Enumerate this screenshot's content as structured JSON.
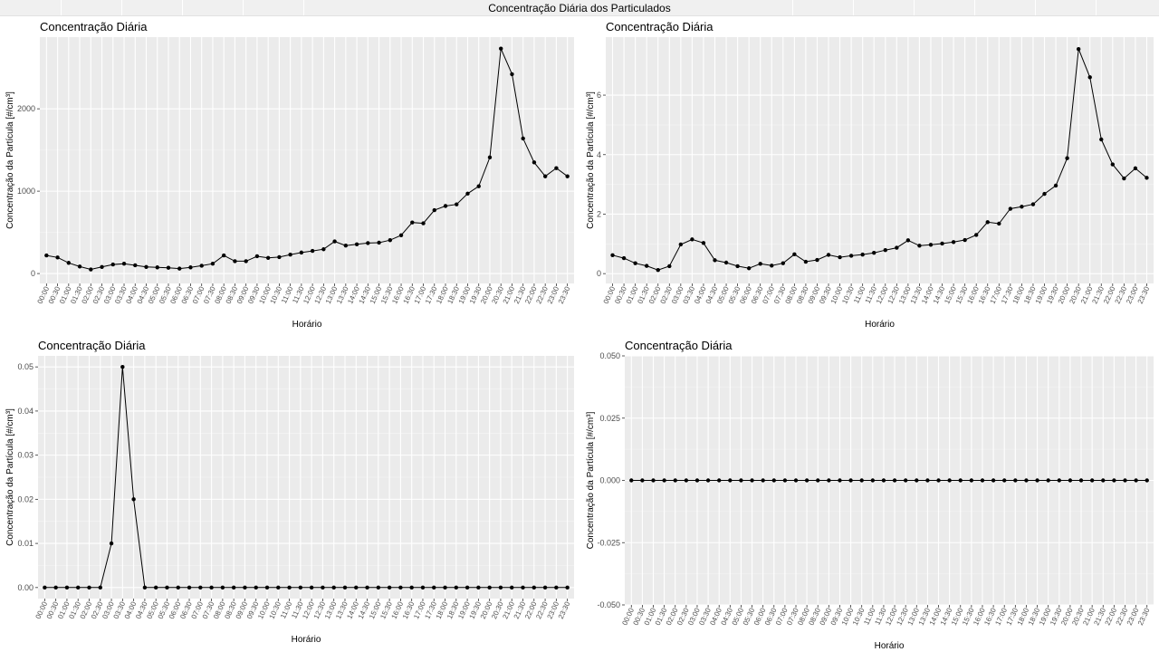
{
  "window": {
    "title": "Concentração Diária dos Particulados"
  },
  "chart_data": [
    {
      "type": "line",
      "title": "Concentração Diária",
      "xlabel": "Horário",
      "ylabel": "Concentração da Partícula [#/cm³]",
      "x_tick_labels": [
        "00:00",
        "00:30",
        "01:00",
        "01:30",
        "02:00",
        "02:30",
        "03:00",
        "03:30",
        "04:00",
        "04:30",
        "05:00",
        "05:30",
        "06:00",
        "06:30",
        "07:00",
        "07:30",
        "08:00",
        "08:30",
        "09:00",
        "09:30",
        "10:00",
        "10:30",
        "11:00",
        "11:30",
        "12:00",
        "12:30",
        "13:00",
        "13:30",
        "14:00",
        "14:30",
        "15:00",
        "15:30",
        "16:00",
        "16:30",
        "17:00",
        "17:30",
        "18:00",
        "18:30",
        "19:00",
        "19:30",
        "20:00",
        "20:30",
        "21:00",
        "21:30",
        "22:00",
        "22:30",
        "23:00",
        "23:30"
      ],
      "y_ticks": [
        0,
        1000,
        2000
      ],
      "y_tick_labels": [
        "0",
        "1000",
        "2000"
      ],
      "ylim": [
        -120,
        2870
      ],
      "grid": true,
      "series": [
        {
          "values": [
            220,
            195,
            130,
            85,
            50,
            80,
            110,
            120,
            100,
            80,
            75,
            70,
            60,
            75,
            95,
            120,
            220,
            150,
            150,
            210,
            190,
            200,
            230,
            255,
            275,
            295,
            390,
            340,
            355,
            370,
            375,
            405,
            465,
            620,
            610,
            770,
            820,
            840,
            970,
            1060,
            1410,
            2730,
            2420,
            1640,
            1350,
            1180,
            1280,
            1180
          ]
        }
      ]
    },
    {
      "type": "line",
      "title": "Concentração Diária",
      "xlabel": "Horário",
      "ylabel": "Concentração da Partícula [#/cm³]",
      "x_tick_labels": [
        "00:00",
        "00:30",
        "01:00",
        "01:30",
        "02:00",
        "02:30",
        "03:00",
        "03:30",
        "04:00",
        "04:30",
        "05:00",
        "05:30",
        "06:00",
        "06:30",
        "07:00",
        "07:30",
        "08:00",
        "08:30",
        "09:00",
        "09:30",
        "10:00",
        "10:30",
        "11:00",
        "11:30",
        "12:00",
        "12:30",
        "13:00",
        "13:30",
        "14:00",
        "14:30",
        "15:00",
        "15:30",
        "16:00",
        "16:30",
        "17:00",
        "17:30",
        "18:00",
        "18:30",
        "19:00",
        "19:30",
        "20:00",
        "20:30",
        "21:00",
        "21:30",
        "22:00",
        "22:30",
        "23:00",
        "23:30"
      ],
      "y_ticks": [
        0,
        2,
        4,
        6
      ],
      "y_tick_labels": [
        "0",
        "2",
        "4",
        "6"
      ],
      "ylim": [
        -0.33,
        7.95
      ],
      "grid": true,
      "series": [
        {
          "values": [
            0.62,
            0.52,
            0.35,
            0.26,
            0.12,
            0.25,
            0.98,
            1.15,
            1.03,
            0.45,
            0.37,
            0.25,
            0.18,
            0.33,
            0.27,
            0.35,
            0.65,
            0.4,
            0.46,
            0.63,
            0.55,
            0.6,
            0.64,
            0.7,
            0.79,
            0.87,
            1.12,
            0.94,
            0.97,
            1.01,
            1.06,
            1.13,
            1.3,
            1.73,
            1.68,
            2.18,
            2.25,
            2.33,
            2.68,
            2.96,
            3.88,
            7.55,
            6.6,
            4.51,
            3.67,
            3.2,
            3.54,
            3.22
          ]
        }
      ]
    },
    {
      "type": "line",
      "title": "Concentração Diária",
      "xlabel": "Horário",
      "ylabel": "Concentração da Partícula [#/cm³]",
      "x_tick_labels": [
        "00:00",
        "00:30",
        "01:00",
        "01:30",
        "02:00",
        "02:30",
        "03:00",
        "03:30",
        "04:00",
        "04:30",
        "05:00",
        "05:30",
        "06:00",
        "06:30",
        "07:00",
        "07:30",
        "08:00",
        "08:30",
        "09:00",
        "09:30",
        "10:00",
        "10:30",
        "11:00",
        "11:30",
        "12:00",
        "12:30",
        "13:00",
        "13:30",
        "14:00",
        "14:30",
        "15:00",
        "15:30",
        "16:00",
        "16:30",
        "17:00",
        "17:30",
        "18:00",
        "18:30",
        "19:00",
        "19:30",
        "20:00",
        "20:30",
        "21:00",
        "21:30",
        "22:00",
        "22:30",
        "23:00",
        "23:30"
      ],
      "y_ticks": [
        0,
        0.01,
        0.02,
        0.03,
        0.04,
        0.05
      ],
      "y_tick_labels": [
        "0.00",
        "0.01",
        "0.02",
        "0.03",
        "0.04",
        "0.05"
      ],
      "ylim": [
        -0.0025,
        0.0525
      ],
      "grid": true,
      "series": [
        {
          "values": [
            0,
            0,
            0,
            0,
            0,
            0,
            0.01,
            0.05,
            0.02,
            0,
            0,
            0,
            0,
            0,
            0,
            0,
            0,
            0,
            0,
            0,
            0,
            0,
            0,
            0,
            0,
            0,
            0,
            0,
            0,
            0,
            0,
            0,
            0,
            0,
            0,
            0,
            0,
            0,
            0,
            0,
            0,
            0,
            0,
            0,
            0,
            0,
            0,
            0
          ]
        }
      ]
    },
    {
      "type": "line",
      "title": "Concentração Diária",
      "xlabel": "Horário",
      "ylabel": "Concentração da Partícula [#/cm³]",
      "x_tick_labels": [
        "00:00",
        "00:30",
        "01:00",
        "01:30",
        "02:00",
        "02:30",
        "03:00",
        "03:30",
        "04:00",
        "04:30",
        "05:00",
        "05:30",
        "06:00",
        "06:30",
        "07:00",
        "07:30",
        "08:00",
        "08:30",
        "09:00",
        "09:30",
        "10:00",
        "10:30",
        "11:00",
        "11:30",
        "12:00",
        "12:30",
        "13:00",
        "13:30",
        "14:00",
        "14:30",
        "15:00",
        "15:30",
        "16:00",
        "16:30",
        "17:00",
        "17:30",
        "18:00",
        "18:30",
        "19:00",
        "19:30",
        "20:00",
        "20:30",
        "21:00",
        "21:30",
        "22:00",
        "22:30",
        "23:00",
        "23:30"
      ],
      "y_ticks": [
        -0.05,
        -0.025,
        0,
        0.025,
        0.05
      ],
      "y_tick_labels": [
        "-0.050",
        "-0.025",
        "0.000",
        "0.025",
        "0.050"
      ],
      "ylim": [
        -0.05,
        0.05
      ],
      "grid": true,
      "series": [
        {
          "values": [
            0,
            0,
            0,
            0,
            0,
            0,
            0,
            0,
            0,
            0,
            0,
            0,
            0,
            0,
            0,
            0,
            0,
            0,
            0,
            0,
            0,
            0,
            0,
            0,
            0,
            0,
            0,
            0,
            0,
            0,
            0,
            0,
            0,
            0,
            0,
            0,
            0,
            0,
            0,
            0,
            0,
            0,
            0,
            0,
            0,
            0,
            0,
            0
          ]
        }
      ]
    }
  ]
}
